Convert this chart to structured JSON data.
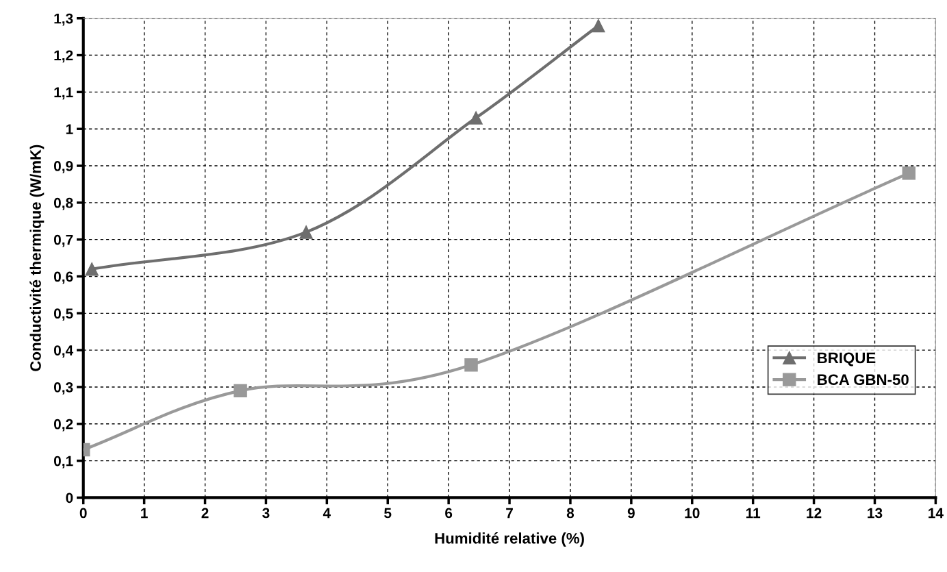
{
  "chart_data": {
    "type": "line",
    "xlabel": "Humidité relative (%)",
    "ylabel": "Conductivité thermique (W/mK)",
    "xlim": [
      0,
      14
    ],
    "xticks": [
      0,
      1,
      2,
      3,
      4,
      5,
      6,
      7,
      8,
      9,
      10,
      11,
      12,
      13,
      14
    ],
    "ylim": [
      0,
      1.3
    ],
    "yticks": [
      {
        "value": 0,
        "label": "0"
      },
      {
        "value": 0.1,
        "label": "0,1"
      },
      {
        "value": 0.2,
        "label": "0,2"
      },
      {
        "value": 0.3,
        "label": "0,3"
      },
      {
        "value": 0.4,
        "label": "0,4"
      },
      {
        "value": 0.5,
        "label": "0,5"
      },
      {
        "value": 0.6,
        "label": "0,6"
      },
      {
        "value": 0.7,
        "label": "0,7"
      },
      {
        "value": 0.8,
        "label": "0,8"
      },
      {
        "value": 0.9,
        "label": "0,9"
      },
      {
        "value": 1,
        "label": "1"
      },
      {
        "value": 1.1,
        "label": "1,1"
      },
      {
        "value": 1.2,
        "label": "1,2"
      },
      {
        "value": 1.3,
        "label": "1,3"
      }
    ],
    "grid": true,
    "legend": "bottom right",
    "series": [
      {
        "name": "BRIQUE",
        "color": "#6e6e6e",
        "marker": "triangle",
        "x": [
          0.14,
          3.66,
          6.45,
          8.46
        ],
        "values": [
          0.62,
          0.72,
          1.03,
          1.28
        ]
      },
      {
        "name": "BCA GBN-50",
        "color": "#999999",
        "marker": "square",
        "x": [
          0,
          2.58,
          6.37,
          13.56
        ],
        "values": [
          0.13,
          0.29,
          0.36,
          0.88
        ]
      }
    ]
  }
}
